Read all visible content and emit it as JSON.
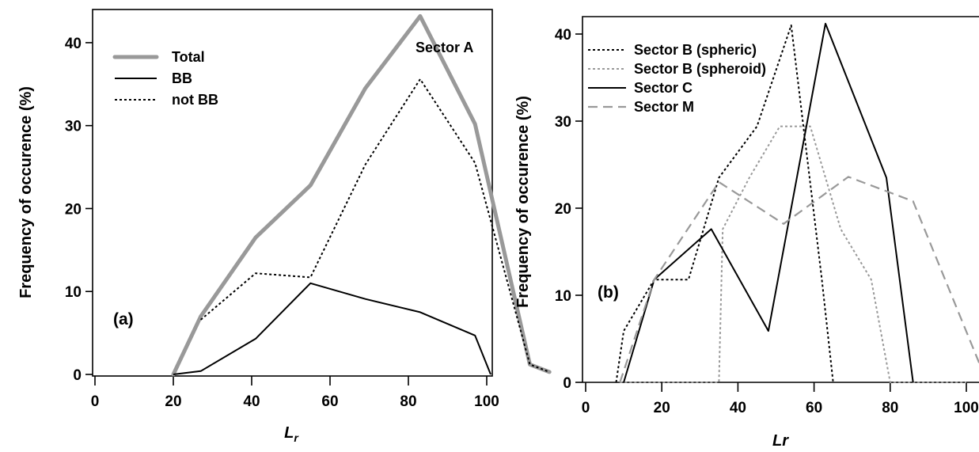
{
  "chart_data": [
    {
      "type": "line",
      "panel_label": "(a)",
      "annotation": "Sector A",
      "xlabel": "L",
      "xlabel_sub": "r",
      "ylabel": "Frequency of occurence (%)",
      "xlim": [
        0,
        116
      ],
      "ylim": [
        0,
        44
      ],
      "xticks": [
        0,
        20,
        40,
        60,
        80,
        100
      ],
      "yticks": [
        0,
        10,
        20,
        30,
        40
      ],
      "legend_position": "top-left",
      "series": [
        {
          "name": "Total",
          "style": "solid-thick",
          "color": "#999999",
          "x": [
            20,
            27,
            41,
            55,
            69,
            83,
            97,
            111,
            116
          ],
          "y": [
            0,
            7,
            16.5,
            22.8,
            34.5,
            43.2,
            30.2,
            1.2,
            0.3
          ]
        },
        {
          "name": "BB",
          "style": "solid",
          "color": "#000000",
          "x": [
            20,
            27,
            41,
            55,
            69,
            83,
            97,
            101
          ],
          "y": [
            0,
            0.4,
            4.3,
            11,
            9.1,
            7.5,
            4.7,
            0
          ]
        },
        {
          "name": "not BB",
          "style": "dotted",
          "color": "#000000",
          "x": [
            27,
            41,
            55,
            69,
            83,
            97,
            111,
            116
          ],
          "y": [
            6.6,
            12.2,
            11.7,
            25.3,
            35.6,
            25.5,
            1.2,
            0.3
          ]
        }
      ]
    },
    {
      "type": "line",
      "panel_label": "(b)",
      "xlabel": "Lr",
      "ylabel": "Frequency of occurence (%)",
      "xlim": [
        -3,
        105
      ],
      "ylim": [
        0,
        42
      ],
      "xticks": [
        0,
        20,
        40,
        60,
        80,
        100
      ],
      "yticks": [
        0,
        10,
        20,
        30,
        40
      ],
      "legend_position": "top-left",
      "series": [
        {
          "name": "Sector B (spheric)",
          "style": "dotted",
          "color": "#000000",
          "x": [
            8,
            10,
            18,
            27,
            35,
            45,
            54,
            62,
            65
          ],
          "y": [
            0,
            5.9,
            11.8,
            11.8,
            23.5,
            29.4,
            41,
            12,
            0
          ]
        },
        {
          "name": "Sector B (spheroid)",
          "style": "dotted",
          "color": "#999999",
          "x": [
            9,
            35,
            36,
            43,
            51,
            59,
            67,
            75,
            80,
            100
          ],
          "y": [
            0,
            0,
            17.6,
            23.5,
            29.4,
            29.4,
            17.6,
            11.8,
            0,
            0
          ]
        },
        {
          "name": "Sector C",
          "style": "solid",
          "color": "#000000",
          "x": [
            10,
            18,
            33,
            48,
            63,
            79,
            86
          ],
          "y": [
            0,
            11.8,
            17.6,
            5.9,
            41.2,
            23.5,
            0
          ]
        },
        {
          "name": "Sector M",
          "style": "dashed",
          "color": "#999999",
          "x": [
            9,
            18,
            35,
            52,
            69,
            86,
            105
          ],
          "y": [
            0,
            11.8,
            23,
            18.2,
            23.6,
            20.8,
            0.5
          ]
        }
      ]
    }
  ]
}
